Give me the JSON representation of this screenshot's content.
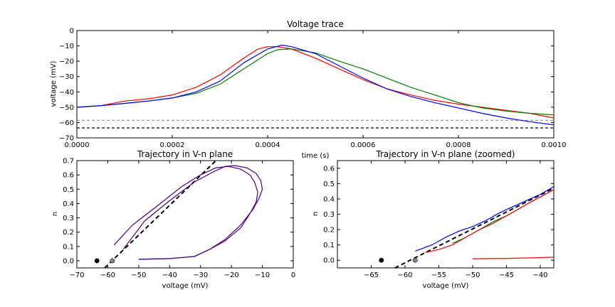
{
  "chart_data": [
    {
      "type": "line",
      "title": "Voltage trace",
      "xlabel": "time (s)",
      "ylabel": "voltage (mV)",
      "xlim": [
        0,
        0.001
      ],
      "ylim": [
        -70,
        0
      ],
      "xticks": [
        "0.0000",
        "0.0002",
        "0.0004",
        "0.0006",
        "0.0008",
        "0.0010"
      ],
      "yticks": [
        "−70",
        "−60",
        "−50",
        "−40",
        "−30",
        "−20",
        "−10",
        "0"
      ],
      "grid": false,
      "colors": {
        "red": "#ff0000",
        "green": "#008000",
        "blue": "#0000ff",
        "black": "#000000",
        "gray": "#808080"
      },
      "series": [
        {
          "color": "red",
          "x": [
            0,
            5e-05,
            0.0001,
            0.00015,
            0.0002,
            0.00025,
            0.0003,
            0.00035,
            0.00038,
            0.0004,
            0.00042,
            0.00045,
            0.0005,
            0.00055,
            0.0006,
            0.00065,
            0.0007,
            0.00075,
            0.0008,
            0.00085,
            0.0009,
            0.00095,
            0.001
          ],
          "y": [
            -50,
            -49,
            -46,
            -44.5,
            -42,
            -37,
            -29,
            -18,
            -12,
            -10.5,
            -10.5,
            -12,
            -18,
            -25,
            -32,
            -38,
            -42,
            -45.5,
            -48,
            -50,
            -52,
            -54,
            -57
          ]
        },
        {
          "color": "green",
          "x": [
            0,
            5e-05,
            0.0001,
            0.00015,
            0.0002,
            0.00025,
            0.0003,
            0.00035,
            0.0004,
            0.00042,
            0.00045,
            0.0005,
            0.00055,
            0.0006,
            0.00065,
            0.0007,
            0.00075,
            0.0008,
            0.00085,
            0.0009,
            0.00095,
            0.001
          ],
          "y": [
            -50,
            -49,
            -47.5,
            -46,
            -44,
            -41,
            -35,
            -25,
            -15,
            -12.5,
            -12,
            -14.5,
            -20,
            -25,
            -31,
            -37,
            -42,
            -47,
            -50.5,
            -52.5,
            -54,
            -55
          ]
        },
        {
          "color": "blue",
          "x": [
            0,
            5e-05,
            0.0001,
            0.00015,
            0.0002,
            0.00025,
            0.0003,
            0.00035,
            0.0004,
            0.00043,
            0.00045,
            0.0005,
            0.00055,
            0.0006,
            0.00065,
            0.0007,
            0.00075,
            0.0008,
            0.00085,
            0.0009,
            0.00095,
            0.001
          ],
          "y": [
            -50,
            -49,
            -47.5,
            -46,
            -44,
            -40,
            -33,
            -21,
            -12,
            -9.5,
            -10.5,
            -15,
            -23,
            -31,
            -38,
            -43,
            -47,
            -50.5,
            -54,
            -57,
            -59.5,
            -61.5
          ]
        }
      ],
      "hlines": [
        {
          "y": -58.5,
          "style": "dashed",
          "color": "gray"
        },
        {
          "y": -63.5,
          "style": "dashed",
          "color": "black"
        }
      ]
    },
    {
      "type": "line",
      "title": "Trajectory in V-n plane",
      "xlabel": "voltage (mV)",
      "ylabel": "n",
      "xlim": [
        -70,
        0
      ],
      "ylim": [
        -0.05,
        0.7
      ],
      "xticks": [
        "−70",
        "−60",
        "−50",
        "−40",
        "−30",
        "−20",
        "−10",
        "0"
      ],
      "yticks": [
        "0.0",
        "0.1",
        "0.2",
        "0.3",
        "0.4",
        "0.5",
        "0.6",
        "0.7"
      ],
      "grid": false,
      "series": [
        {
          "color": "#4b0082",
          "x": [
            -50,
            -40,
            -32,
            -27,
            -22,
            -17,
            -13,
            -11,
            -10,
            -10.5,
            -12,
            -15,
            -19,
            -22,
            -26,
            -32,
            -40,
            -48,
            -55
          ],
          "y": [
            0.01,
            0.015,
            0.03,
            0.08,
            0.15,
            0.25,
            0.36,
            0.44,
            0.5,
            0.56,
            0.61,
            0.65,
            0.665,
            0.66,
            0.62,
            0.55,
            0.42,
            0.28,
            0.08
          ]
        },
        {
          "color": "#4b0082",
          "x": [
            -50,
            -40,
            -32,
            -27,
            -22,
            -17,
            -14,
            -12,
            -11.5,
            -12.5,
            -14,
            -17,
            -21,
            -25,
            -30,
            -36,
            -43,
            -52,
            -58
          ],
          "y": [
            0.01,
            0.015,
            0.03,
            0.08,
            0.14,
            0.23,
            0.33,
            0.41,
            0.48,
            0.55,
            0.6,
            0.64,
            0.66,
            0.65,
            0.6,
            0.52,
            0.4,
            0.25,
            0.11
          ]
        }
      ],
      "nullcline": {
        "style": "dashed",
        "color": "black",
        "x": [
          -61,
          -25
        ],
        "y": [
          -0.05,
          0.7
        ]
      },
      "points": [
        {
          "x": -63.5,
          "y": 0.0,
          "color": "black"
        },
        {
          "x": -58.5,
          "y": 0.0,
          "color": "gray"
        }
      ]
    },
    {
      "type": "line",
      "title": "Trajectory in V-n plane (zoomed)",
      "xlabel": "voltage (mV)",
      "ylabel": "n",
      "xlim": [
        -70,
        -38
      ],
      "ylim": [
        -0.05,
        0.65
      ],
      "xticks": [
        "−65",
        "−60",
        "−55",
        "−50",
        "−45",
        "−40"
      ],
      "yticks": [
        "0.0",
        "0.1",
        "0.2",
        "0.3",
        "0.4",
        "0.5",
        "0.6"
      ],
      "grid": false,
      "series": [
        {
          "color": "blue",
          "x": [
            -58.5,
            -56,
            -54,
            -52,
            -50,
            -48,
            -46,
            -44,
            -42,
            -40,
            -38
          ],
          "y": [
            0.06,
            0.1,
            0.15,
            0.19,
            0.22,
            0.26,
            0.31,
            0.35,
            0.39,
            0.43,
            0.48
          ]
        },
        {
          "color": "green",
          "x": [
            -53,
            -51,
            -49,
            -47,
            -45,
            -43,
            -41,
            -38
          ],
          "y": [
            0.11,
            0.15,
            0.2,
            0.25,
            0.29,
            0.34,
            0.39,
            0.46
          ]
        },
        {
          "color": "red",
          "x": [
            -57,
            -55,
            -53,
            -51,
            -49,
            -47,
            -45,
            -43,
            -41,
            -38
          ],
          "y": [
            0.05,
            0.07,
            0.1,
            0.15,
            0.2,
            0.24,
            0.29,
            0.34,
            0.39,
            0.46
          ]
        },
        {
          "color": "red",
          "x": [
            -50,
            -45,
            -40,
            -38
          ],
          "y": [
            0.01,
            0.012,
            0.017,
            0.02
          ]
        }
      ],
      "nullcline": {
        "style": "dashed",
        "color": "black",
        "x": [
          -61.5,
          -38
        ],
        "y": [
          -0.05,
          0.47
        ]
      },
      "points": [
        {
          "x": -63.5,
          "y": 0.0,
          "color": "black"
        },
        {
          "x": -58.5,
          "y": 0.0,
          "color": "gray"
        }
      ]
    }
  ]
}
